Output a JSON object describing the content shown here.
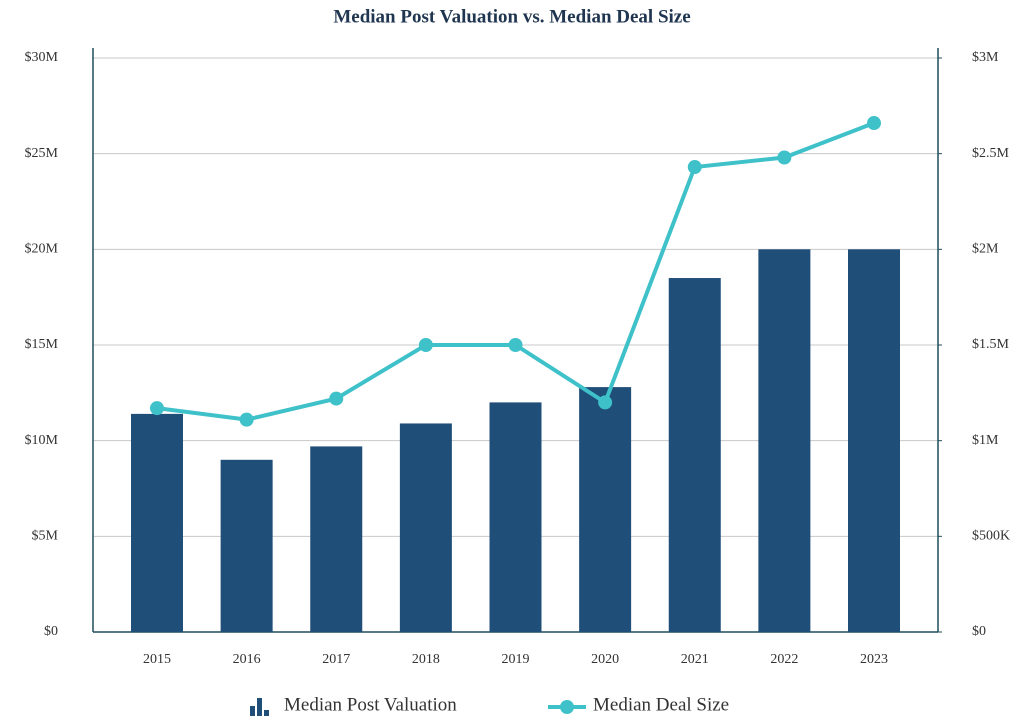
{
  "chart_data": {
    "type": "bar",
    "title": "Median Post Valuation vs. Median Deal Size",
    "categories": [
      "2015",
      "2016",
      "2017",
      "2018",
      "2019",
      "2020",
      "2021",
      "2022",
      "2023"
    ],
    "series": [
      {
        "name": "Median Post Valuation",
        "type": "bar",
        "color": "#1f4e79",
        "values": [
          11400000,
          9000000,
          9700000,
          10900000,
          12000000,
          12800000,
          18500000,
          20000000,
          20000000
        ]
      },
      {
        "name": "Median Deal Size",
        "type": "line",
        "axis": "y2",
        "color": "#3fc1c9",
        "values": [
          1170000,
          1110000,
          1220000,
          1500000,
          1500000,
          1200000,
          2430000,
          2480000,
          2660000
        ]
      }
    ],
    "ylim": [
      0,
      30000000
    ],
    "yticks": [
      {
        "value": 0,
        "label": "$0"
      },
      {
        "value": 5000000,
        "label": "$5M"
      },
      {
        "value": 10000000,
        "label": "$10M"
      },
      {
        "value": 15000000,
        "label": "$15M"
      },
      {
        "value": 20000000,
        "label": "$20M"
      },
      {
        "value": 25000000,
        "label": "$25M"
      },
      {
        "value": 30000000,
        "label": "$30M"
      }
    ],
    "y2lim": [
      0,
      3000000
    ],
    "y2ticks": [
      {
        "value": 0,
        "label": "$0"
      },
      {
        "value": 500000,
        "label": "$500K"
      },
      {
        "value": 1000000,
        "label": "$1M"
      },
      {
        "value": 1500000,
        "label": "$1.5M"
      },
      {
        "value": 2000000,
        "label": "$2M"
      },
      {
        "value": 2500000,
        "label": "$2.5M"
      },
      {
        "value": 3000000,
        "label": "$3M"
      }
    ],
    "grid": true,
    "legend": "bottom"
  }
}
